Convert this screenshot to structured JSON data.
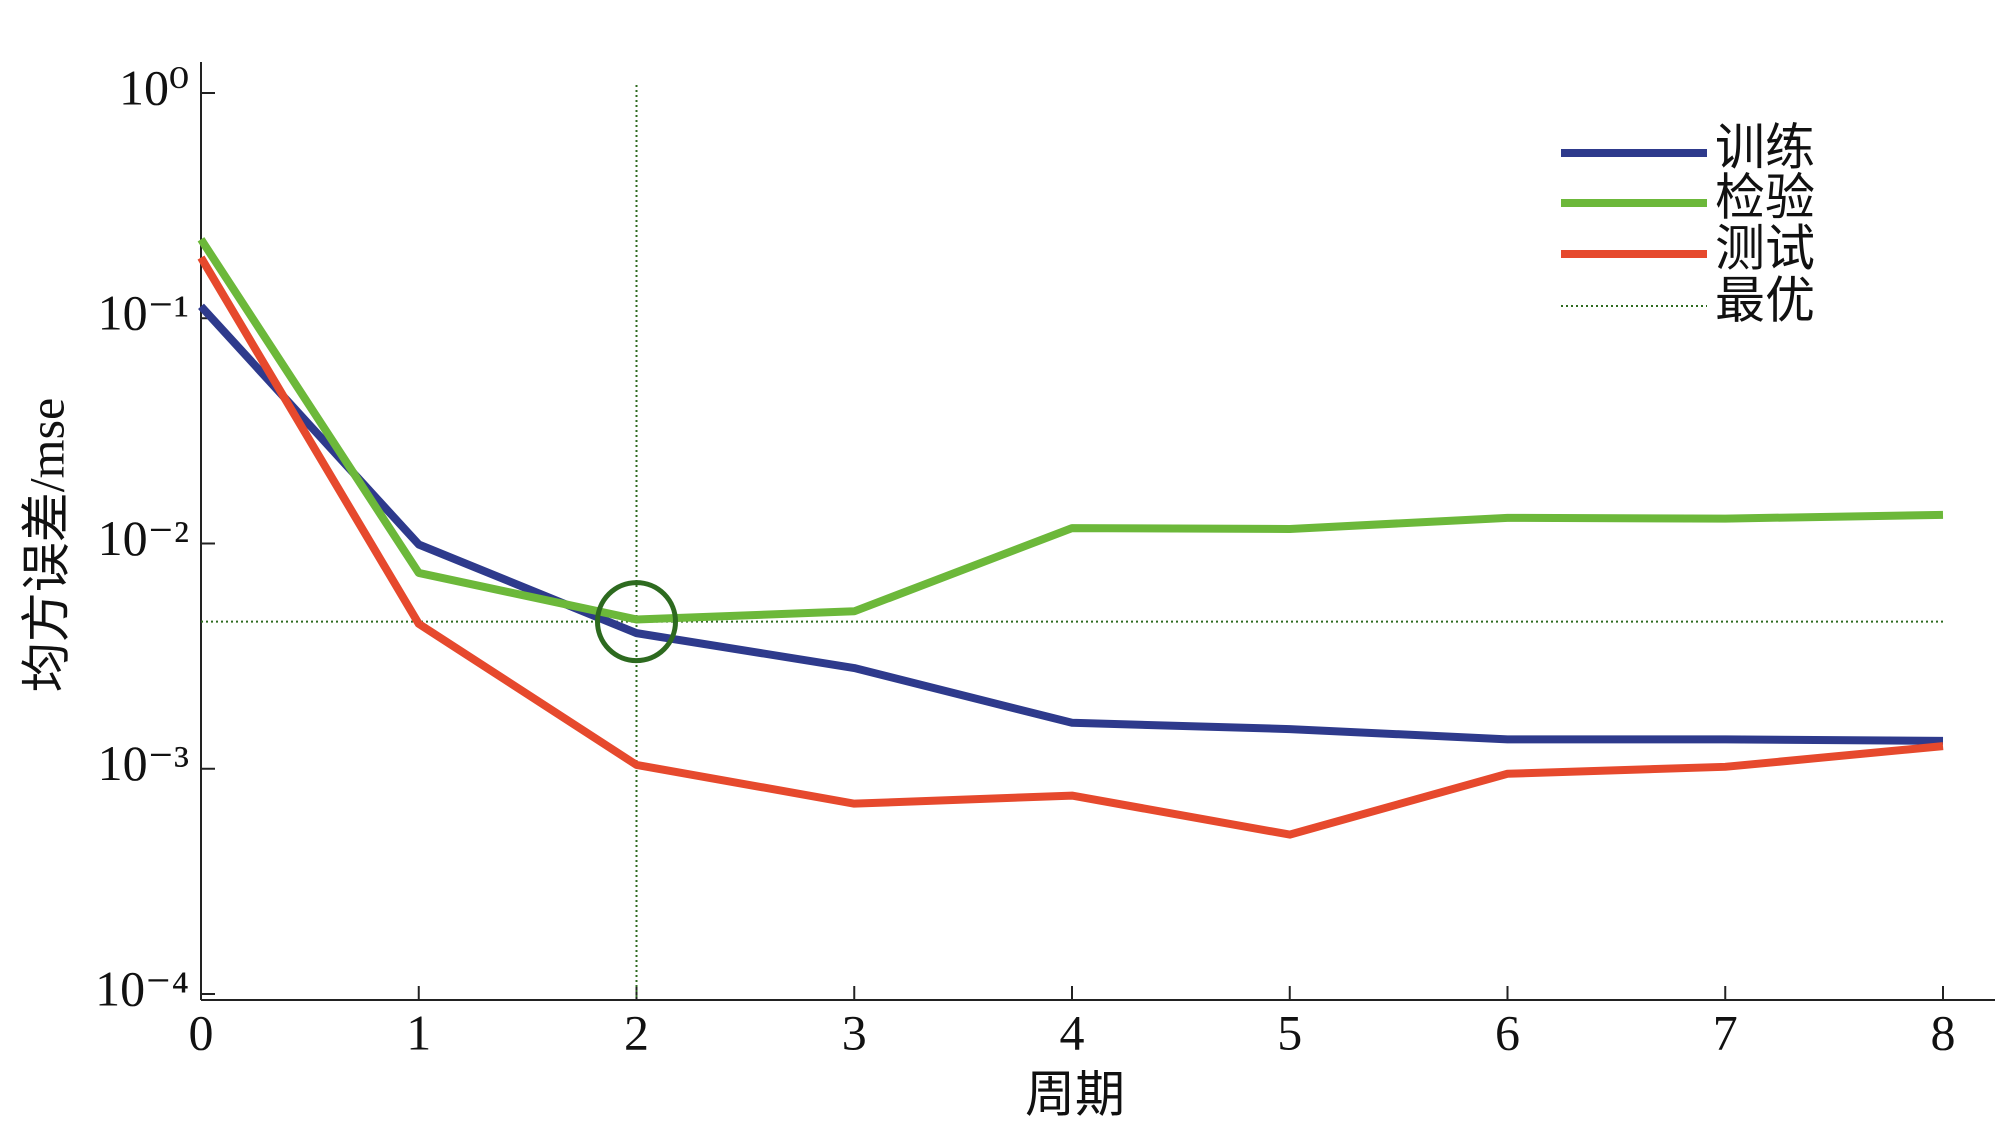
{
  "chart_data": {
    "type": "line",
    "y_label": "均方误差/mse",
    "x_label": "周期",
    "x": [
      0,
      1,
      2,
      3,
      4,
      5,
      6,
      7,
      8
    ],
    "series": [
      {
        "name": "训练",
        "color": "#2e3a8c",
        "values": [
          0.113,
          0.0099,
          0.004,
          0.0028,
          0.0016,
          0.0015,
          0.00135,
          0.00135,
          0.00133
        ]
      },
      {
        "name": "检验",
        "color": "#6cb83a",
        "values": [
          0.224,
          0.0074,
          0.0046,
          0.005,
          0.0117,
          0.0116,
          0.013,
          0.0129,
          0.0134
        ]
      },
      {
        "name": "测试",
        "color": "#e6492d",
        "values": [
          0.186,
          0.0044,
          0.00104,
          0.0007,
          0.00076,
          0.00051,
          0.00095,
          0.00102,
          0.00126
        ]
      }
    ],
    "best": {
      "name": "最优",
      "x": 2,
      "y": 0.0045,
      "color": "#2d6a1f"
    },
    "xlim": [
      0,
      8
    ],
    "xticks": [
      0,
      1,
      2,
      3,
      4,
      5,
      6,
      7,
      8
    ],
    "ylim": [
      0.0001,
      1
    ],
    "yticks": [
      {
        "value": 0.0001,
        "label": "10⁻⁴"
      },
      {
        "value": 0.001,
        "label": "10⁻³"
      },
      {
        "value": 0.01,
        "label": "10⁻²"
      },
      {
        "value": 0.1,
        "label": "10⁻¹"
      },
      {
        "value": 1,
        "label": "10⁰"
      }
    ],
    "log_y": true,
    "legend": "upper right"
  }
}
